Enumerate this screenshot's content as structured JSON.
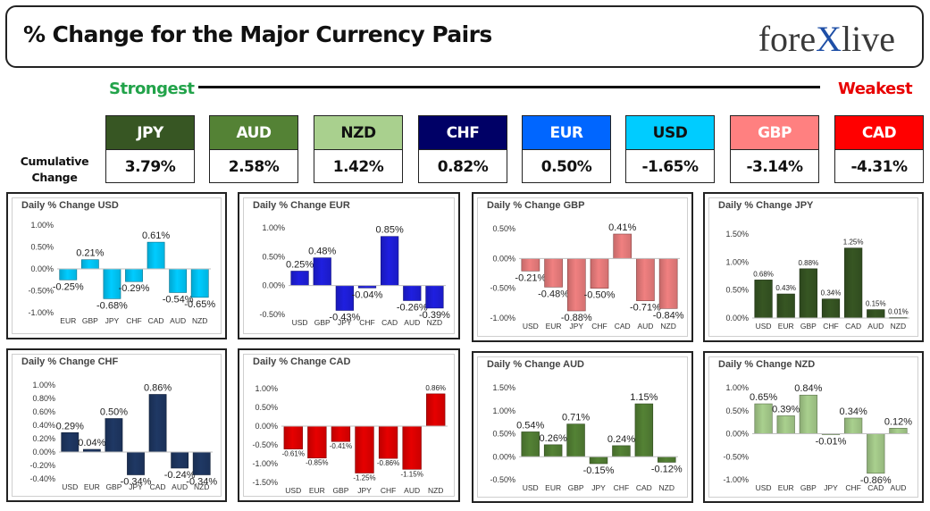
{
  "header": {
    "title": "% Change for the Major Currency Pairs",
    "logo_left": "fore",
    "logo_x": "X",
    "logo_right": "live",
    "strongest_label": "Strongest",
    "weakest_label": "Weakest",
    "cumulative_label_1": "Cumulative",
    "cumulative_label_2": "Change"
  },
  "colors": {
    "strongest": "#22a34a",
    "weakest": "#e80000"
  },
  "strength": [
    {
      "currency": "JPY",
      "value": "3.79%",
      "bg": "#375623",
      "fg": "#ffffff"
    },
    {
      "currency": "AUD",
      "value": "2.58%",
      "bg": "#548235",
      "fg": "#ffffff"
    },
    {
      "currency": "NZD",
      "value": "1.42%",
      "bg": "#a9d08e",
      "fg": "#111111"
    },
    {
      "currency": "CHF",
      "value": "0.82%",
      "bg": "#000066",
      "fg": "#ffffff"
    },
    {
      "currency": "EUR",
      "value": "0.50%",
      "bg": "#0066ff",
      "fg": "#ffffff"
    },
    {
      "currency": "USD",
      "value": "-1.65%",
      "bg": "#00ccff",
      "fg": "#111111"
    },
    {
      "currency": "GBP",
      "value": "-3.14%",
      "bg": "#ff8080",
      "fg": "#ffffff"
    },
    {
      "currency": "CAD",
      "value": "-4.31%",
      "bg": "#ff0000",
      "fg": "#ffffff"
    }
  ],
  "chart_data": [
    {
      "type": "bar",
      "title": "Daily % Change USD",
      "categories": [
        "EUR",
        "GBP",
        "JPY",
        "CHF",
        "CAD",
        "AUD",
        "NZD"
      ],
      "values": [
        -0.25,
        0.21,
        -0.68,
        -0.29,
        0.61,
        -0.54,
        -0.65
      ],
      "labels": [
        "-0.25%",
        "0.21%",
        "-0.68%",
        "-0.29%",
        "0.61%",
        "-0.54%",
        "-0.65%"
      ],
      "ticks": [
        -1.0,
        -0.5,
        0.0,
        0.5,
        1.0
      ],
      "tick_labels": [
        "-1.00%",
        "-0.50%",
        "0.00%",
        "0.50%",
        "1.00%"
      ],
      "ylim": [
        -1.0,
        1.0
      ],
      "color": "#00ccff",
      "label_size": 11
    },
    {
      "type": "bar",
      "title": "Daily % Change EUR",
      "categories": [
        "USD",
        "GBP",
        "JPY",
        "CHF",
        "CAD",
        "AUD",
        "NZD"
      ],
      "values": [
        0.25,
        0.48,
        -0.43,
        -0.04,
        0.85,
        -0.26,
        -0.39
      ],
      "labels": [
        "0.25%",
        "0.48%",
        "-0.43%",
        "-0.04%",
        "0.85%",
        "-0.26%",
        "-0.39%"
      ],
      "ticks": [
        -0.5,
        0.0,
        0.5,
        1.0
      ],
      "tick_labels": [
        "-0.50%",
        "0.00%",
        "0.50%",
        "1.00%"
      ],
      "ylim": [
        -0.5,
        1.0
      ],
      "color": "#1f1fe0",
      "label_size": 11
    },
    {
      "type": "bar",
      "title": "Daily % Change GBP",
      "categories": [
        "USD",
        "EUR",
        "JPY",
        "CHF",
        "CAD",
        "AUD",
        "NZD"
      ],
      "values": [
        -0.21,
        -0.48,
        -0.88,
        -0.5,
        0.41,
        -0.71,
        -0.84
      ],
      "labels": [
        "-0.21%",
        "-0.48%",
        "-0.88%",
        "-0.50%",
        "0.41%",
        "-0.71%",
        "-0.84%"
      ],
      "ticks": [
        -1.0,
        -0.5,
        0.0,
        0.5
      ],
      "tick_labels": [
        "-1.00%",
        "-0.50%",
        "0.00%",
        "0.50%"
      ],
      "ylim": [
        -1.0,
        0.5
      ],
      "color": "#f08080",
      "label_size": 11
    },
    {
      "type": "bar",
      "title": "Daily % Change JPY",
      "categories": [
        "USD",
        "EUR",
        "GBP",
        "CHF",
        "CAD",
        "AUD",
        "NZD"
      ],
      "values": [
        0.68,
        0.43,
        0.88,
        0.34,
        1.25,
        0.15,
        0.01
      ],
      "labels": [
        "0.68%",
        "0.43%",
        "0.88%",
        "0.34%",
        "1.25%",
        "0.15%",
        "0.01%"
      ],
      "ticks": [
        0.0,
        0.5,
        1.0,
        1.5
      ],
      "tick_labels": [
        "0.00%",
        "0.50%",
        "1.00%",
        "1.50%"
      ],
      "ylim": [
        0.0,
        1.5
      ],
      "color": "#375623",
      "label_size": 8
    },
    {
      "type": "bar",
      "title": "Daily % Change CHF",
      "categories": [
        "USD",
        "EUR",
        "GBP",
        "JPY",
        "CAD",
        "AUD",
        "NZD"
      ],
      "values": [
        0.29,
        0.04,
        0.5,
        -0.34,
        0.86,
        -0.24,
        -0.34
      ],
      "labels": [
        "0.29%",
        "0.04%",
        "0.50%",
        "-0.34%",
        "0.86%",
        "-0.24%",
        "-0.34%"
      ],
      "ticks": [
        -0.4,
        -0.2,
        0.0,
        0.2,
        0.4,
        0.6,
        0.8,
        1.0
      ],
      "tick_labels": [
        "-0.40%",
        "-0.20%",
        "0.00%",
        "0.20%",
        "0.40%",
        "0.60%",
        "0.80%",
        "1.00%"
      ],
      "ylim": [
        -0.4,
        1.0
      ],
      "color": "#1f3864",
      "label_size": 11
    },
    {
      "type": "bar",
      "title": "Daily % Change CAD",
      "categories": [
        "USD",
        "EUR",
        "GBP",
        "JPY",
        "CHF",
        "AUD",
        "NZD"
      ],
      "values": [
        -0.61,
        -0.85,
        -0.41,
        -1.25,
        -0.86,
        -1.15,
        0.86
      ],
      "labels": [
        "-0.61%",
        "-0.85%",
        "-0.41%",
        "-1.25%",
        "-0.86%",
        "-1.15%",
        "0.86%"
      ],
      "ticks": [
        -1.5,
        -1.0,
        -0.5,
        0.0,
        0.5,
        1.0
      ],
      "tick_labels": [
        "-1.50%",
        "-1.00%",
        "-0.50%",
        "0.00%",
        "0.50%",
        "1.00%"
      ],
      "ylim": [
        -1.5,
        1.0
      ],
      "color": "#e60000",
      "label_size": 8
    },
    {
      "type": "bar",
      "title": "Daily % Change AUD",
      "categories": [
        "USD",
        "EUR",
        "GBP",
        "JPY",
        "CHF",
        "CAD",
        "NZD"
      ],
      "values": [
        0.54,
        0.26,
        0.71,
        -0.15,
        0.24,
        1.15,
        -0.12
      ],
      "labels": [
        "0.54%",
        "0.26%",
        "0.71%",
        "-0.15%",
        "0.24%",
        "1.15%",
        "-0.12%"
      ],
      "ticks": [
        -0.5,
        0.0,
        0.5,
        1.0,
        1.5
      ],
      "tick_labels": [
        "-0.50%",
        "0.00%",
        "0.50%",
        "1.00%",
        "1.50%"
      ],
      "ylim": [
        -0.5,
        1.5
      ],
      "color": "#548235",
      "label_size": 11
    },
    {
      "type": "bar",
      "title": "Daily % Change NZD",
      "categories": [
        "USD",
        "EUR",
        "GBP",
        "JPY",
        "CHF",
        "CAD",
        "AUD"
      ],
      "values": [
        0.65,
        0.39,
        0.84,
        -0.01,
        0.34,
        -0.86,
        0.12
      ],
      "labels": [
        "0.65%",
        "0.39%",
        "0.84%",
        "-0.01%",
        "0.34%",
        "-0.86%",
        "0.12%"
      ],
      "ticks": [
        -1.0,
        -0.5,
        0.0,
        0.5,
        1.0
      ],
      "tick_labels": [
        "-1.00%",
        "-0.50%",
        "0.00%",
        "0.50%",
        "1.00%"
      ],
      "ylim": [
        -1.0,
        1.0
      ],
      "color": "#a9d08e",
      "label_size": 11
    }
  ]
}
